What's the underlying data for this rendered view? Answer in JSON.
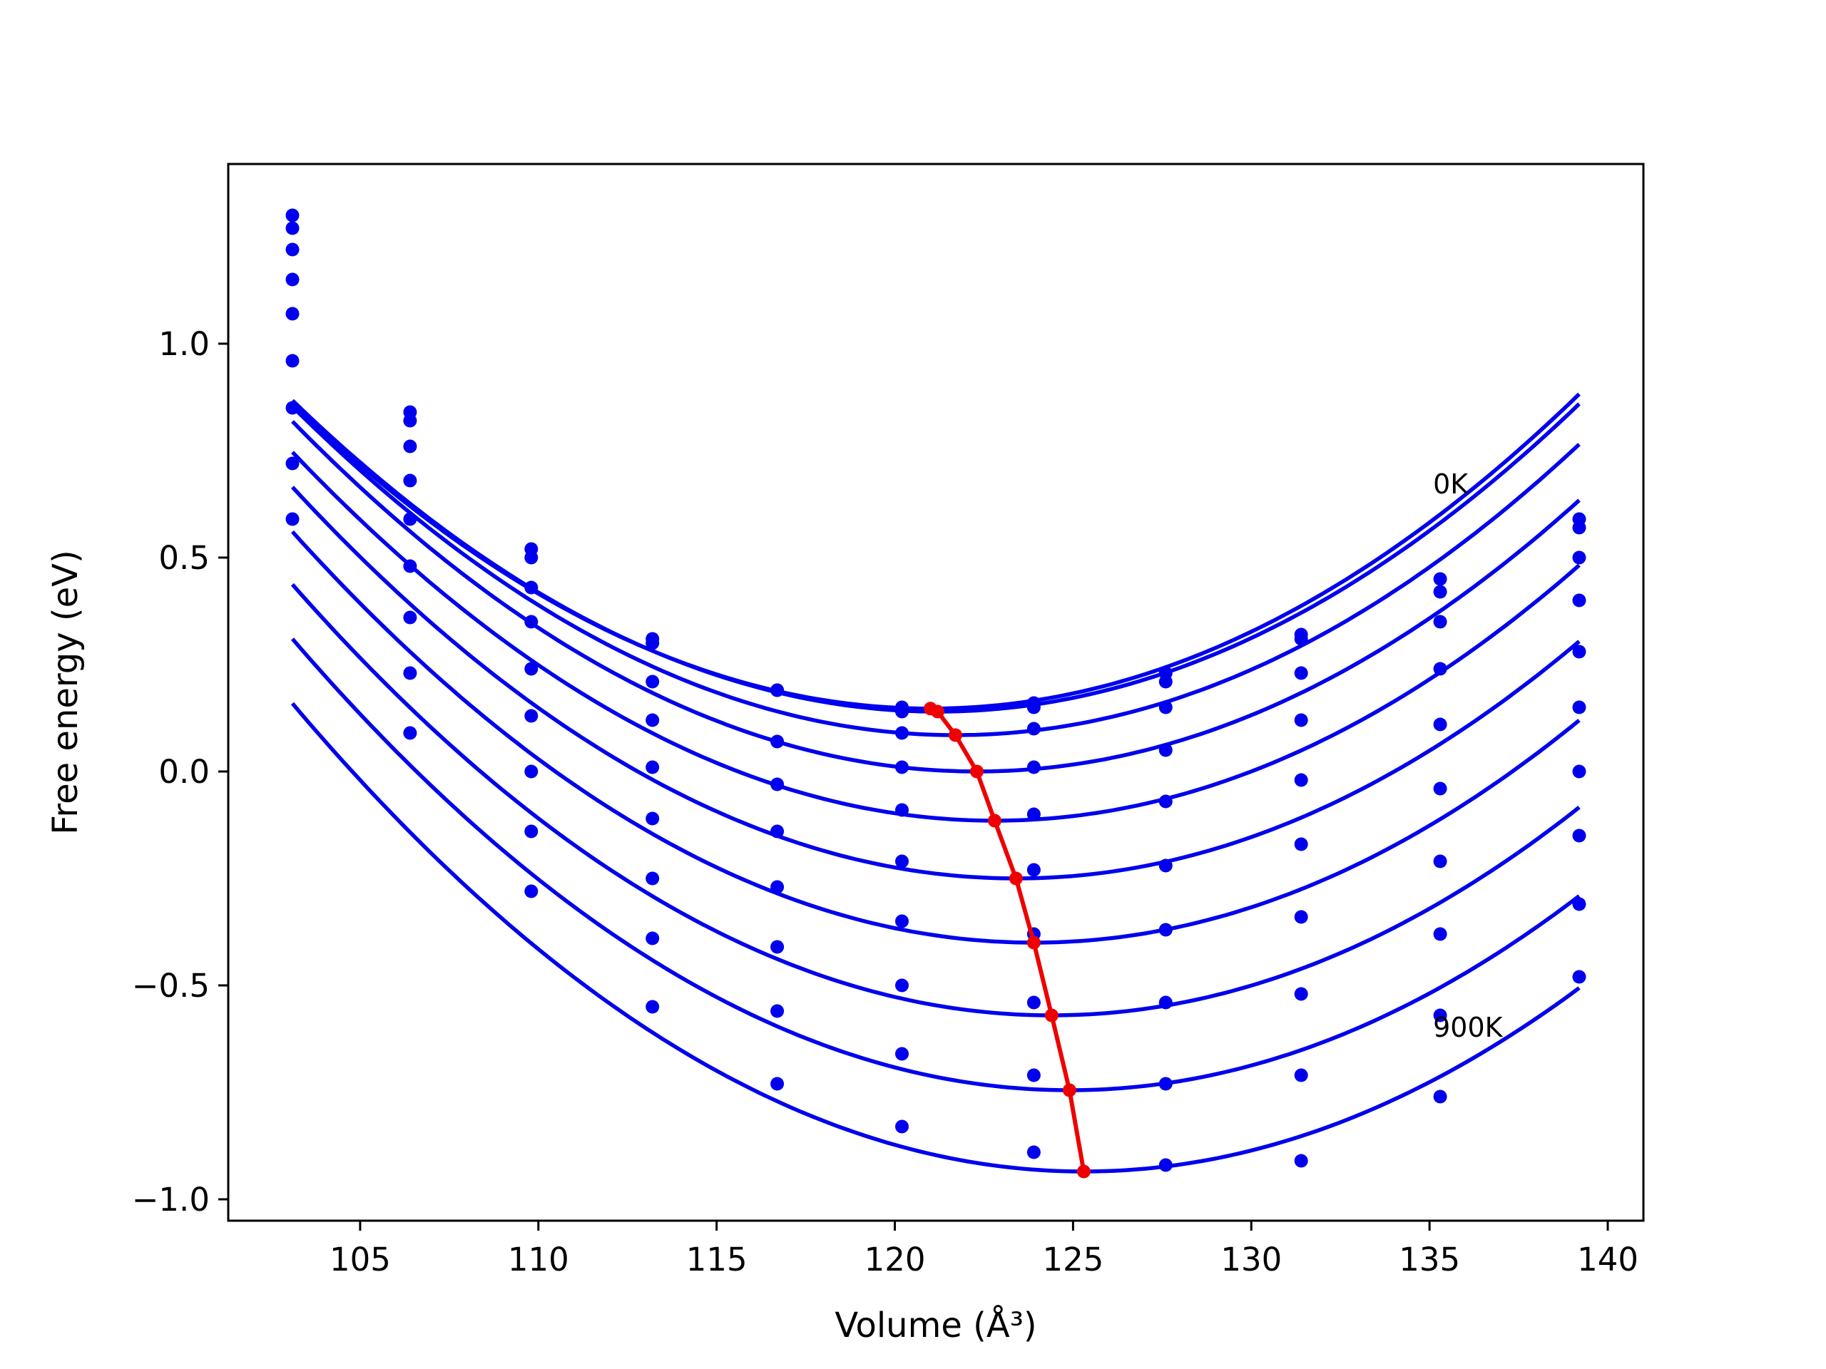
{
  "chart_data": {
    "type": "line",
    "xlabel": "Volume (Å³)",
    "ylabel": "Free energy (eV)",
    "xlim": [
      101.3,
      141.0
    ],
    "ylim": [
      -1.05,
      1.42
    ],
    "x_ticks": [
      105,
      110,
      115,
      120,
      125,
      130,
      135,
      140
    ],
    "y_ticks": [
      -1.0,
      -0.5,
      0.0,
      0.5,
      1.0
    ],
    "y_tick_labels": [
      "−1.0",
      "−0.5",
      "0.0",
      "0.5",
      "1.0"
    ],
    "grid": false,
    "series_color": "#0000ee",
    "fit_color": "#ee0000",
    "annotations": [
      {
        "text": "0K",
        "x": 135.1,
        "y": 0.65
      },
      {
        "text": "900K",
        "x": 135.1,
        "y": -0.62
      }
    ],
    "x": [
      103.1,
      106.4,
      109.8,
      113.2,
      116.7,
      120.2,
      123.9,
      127.6,
      131.4,
      135.3,
      139.2
    ],
    "series": [
      {
        "values": [
          1.3,
          0.84,
          0.52,
          0.31,
          0.19,
          0.15,
          0.16,
          0.23,
          0.32,
          0.45,
          0.59
        ],
        "fit": {
          "a": 0.00222,
          "vmin": 121.0,
          "emin": 0.147
        }
      },
      {
        "values": [
          1.27,
          0.82,
          0.5,
          0.3,
          0.19,
          0.14,
          0.15,
          0.21,
          0.31,
          0.42,
          0.57
        ],
        "fit": {
          "a": 0.00222,
          "vmin": 121.2,
          "emin": 0.14
        }
      },
      {
        "values": [
          1.22,
          0.76,
          0.43,
          0.21,
          0.07,
          0.09,
          0.1,
          0.15,
          0.23,
          0.35,
          0.5
        ],
        "fit": {
          "a": 0.00222,
          "vmin": 121.7,
          "emin": 0.085
        }
      },
      {
        "values": [
          1.15,
          0.68,
          0.35,
          0.12,
          -0.03,
          0.01,
          0.01,
          0.05,
          0.12,
          0.24,
          0.4
        ],
        "fit": {
          "a": 0.00222,
          "vmin": 122.3,
          "emin": 0.0
        }
      },
      {
        "values": [
          1.07,
          0.59,
          0.24,
          0.01,
          -0.14,
          -0.09,
          -0.1,
          -0.07,
          -0.02,
          0.11,
          0.28
        ],
        "fit": {
          "a": 0.00222,
          "vmin": 122.8,
          "emin": -0.115
        }
      },
      {
        "values": [
          0.96,
          0.48,
          0.13,
          -0.11,
          -0.27,
          -0.21,
          -0.23,
          -0.22,
          -0.17,
          -0.04,
          0.15
        ],
        "fit": {
          "a": 0.00222,
          "vmin": 123.4,
          "emin": -0.25
        }
      },
      {
        "values": [
          0.85,
          0.36,
          0.0,
          -0.25,
          -0.41,
          -0.35,
          -0.38,
          -0.37,
          -0.34,
          -0.21,
          0.0
        ],
        "fit": {
          "a": 0.00222,
          "vmin": 123.9,
          "emin": -0.4
        }
      },
      {
        "values": [
          0.72,
          0.23,
          -0.14,
          -0.39,
          -0.56,
          -0.5,
          -0.54,
          -0.54,
          -0.52,
          -0.38,
          -0.15
        ],
        "fit": {
          "a": 0.00222,
          "vmin": 124.4,
          "emin": -0.57
        }
      },
      {
        "values": [
          0.59,
          0.09,
          -0.28,
          -0.55,
          -0.73,
          -0.66,
          -0.71,
          -0.73,
          -0.71,
          -0.57,
          -0.31
        ],
        "fit": {
          "a": 0.00222,
          "vmin": 124.9,
          "emin": -0.745
        }
      },
      {
        "values": [
          null,
          null,
          null,
          null,
          null,
          -0.83,
          -0.89,
          -0.92,
          -0.91,
          -0.76,
          -0.48
        ],
        "fit": {
          "a": 0.00222,
          "vmin": 125.3,
          "emin": -0.935
        }
      }
    ],
    "minima": {
      "x": [
        121.0,
        121.2,
        121.7,
        122.3,
        122.8,
        123.4,
        123.9,
        124.4,
        124.9,
        125.3
      ],
      "y": [
        0.147,
        0.14,
        0.085,
        0.0,
        -0.115,
        -0.25,
        -0.4,
        -0.57,
        -0.745,
        -0.935
      ]
    }
  }
}
